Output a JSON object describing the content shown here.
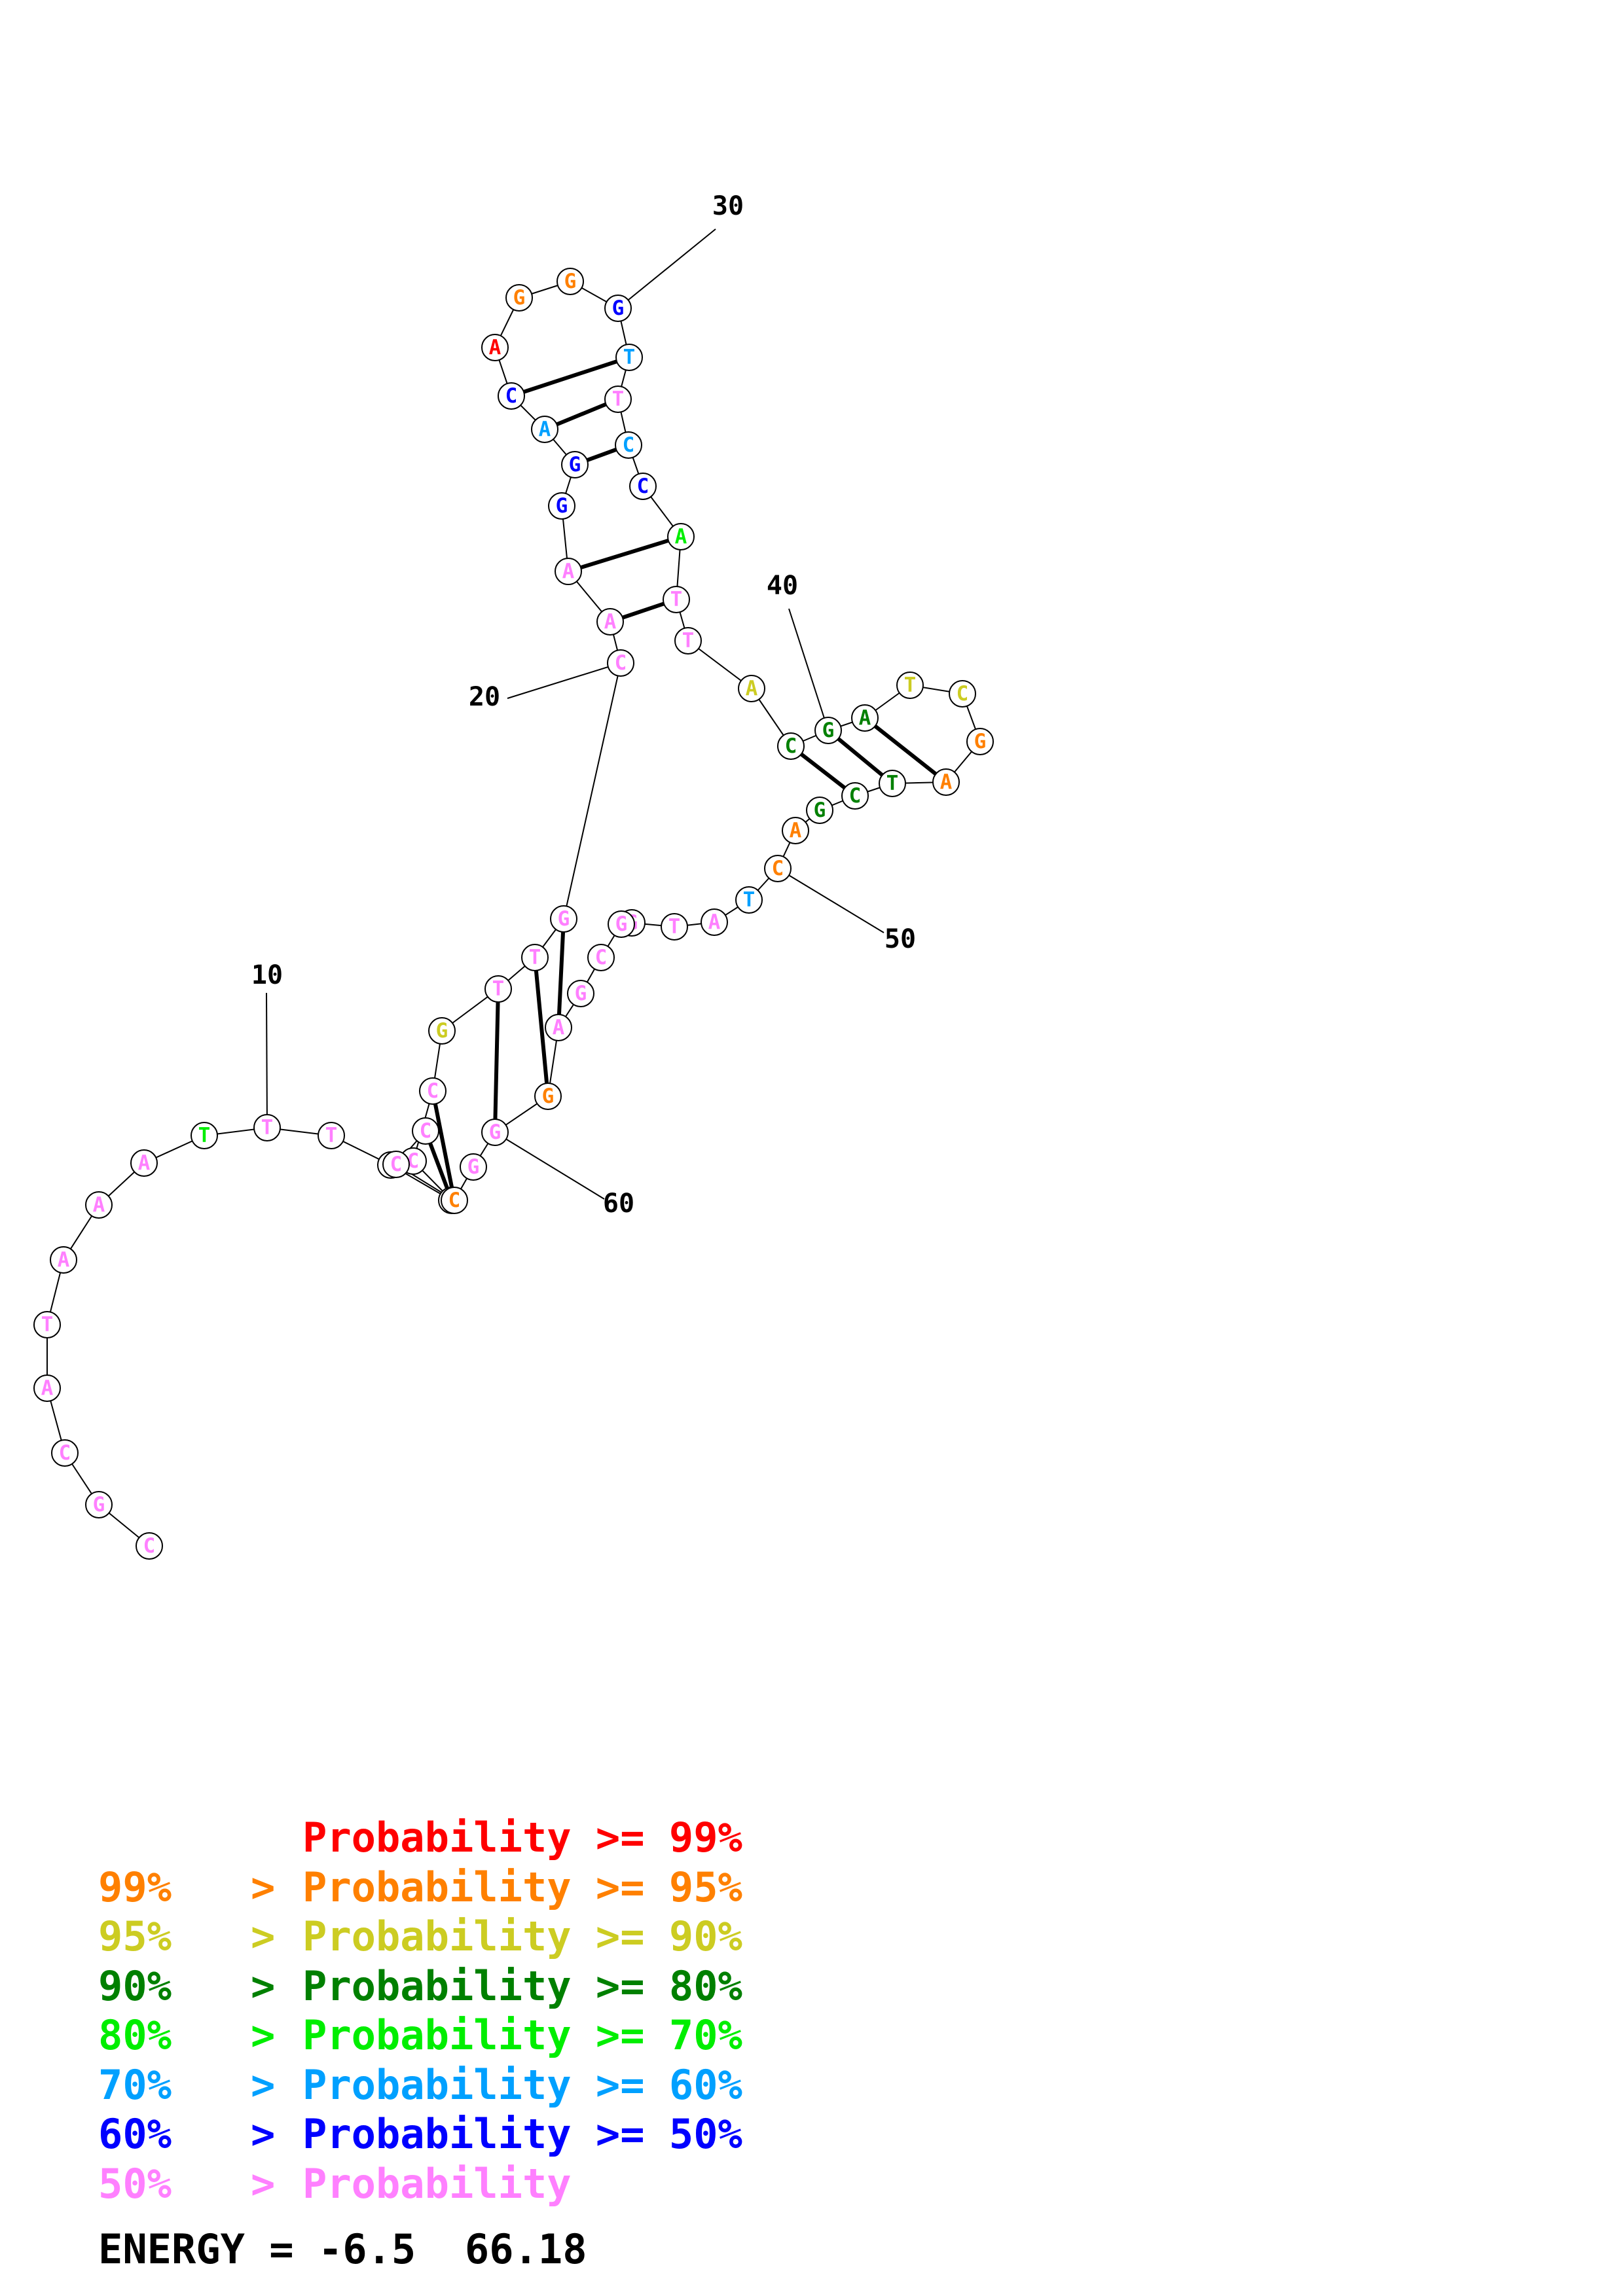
{
  "structure": {
    "sequence": [
      "C",
      "G",
      "C",
      "A",
      "T",
      "A",
      "A",
      "A",
      "T",
      "T",
      "T",
      "G",
      "C",
      "C",
      "C",
      "G",
      "T",
      "T",
      "G",
      "C",
      "A",
      "A",
      "G",
      "G",
      "A",
      "C",
      "A",
      "G",
      "G",
      "G",
      "T",
      "T",
      "C",
      "C",
      "A",
      "T",
      "T",
      "A",
      "C",
      "G",
      "A",
      "T",
      "C",
      "G",
      "A",
      "T",
      "C",
      "G",
      "A",
      "C",
      "T",
      "A",
      "T",
      "G",
      "G",
      "C",
      "G",
      "A",
      "G",
      "G",
      "G",
      "C",
      "C",
      "C"
    ],
    "probability_class": [
      8,
      8,
      8,
      8,
      8,
      8,
      8,
      8,
      5,
      8,
      8,
      8,
      8,
      8,
      8,
      3,
      8,
      8,
      8,
      8,
      8,
      8,
      7,
      7,
      6,
      7,
      1,
      2,
      2,
      7,
      6,
      8,
      6,
      7,
      5,
      8,
      8,
      3,
      4,
      4,
      4,
      3,
      3,
      2,
      2,
      4,
      4,
      4,
      2,
      2,
      6,
      8,
      8,
      8,
      8,
      8,
      8,
      8,
      2,
      8,
      8,
      2,
      8,
      8
    ],
    "base_pairs": [
      [
        13,
        64
      ],
      [
        14,
        63
      ],
      [
        15,
        62
      ],
      [
        17,
        60
      ],
      [
        18,
        59
      ],
      [
        19,
        58
      ],
      [
        21,
        36
      ],
      [
        22,
        35
      ],
      [
        24,
        33
      ],
      [
        25,
        32
      ],
      [
        26,
        31
      ],
      [
        39,
        47
      ],
      [
        40,
        46
      ],
      [
        41,
        45
      ]
    ],
    "position_markers": [
      "10",
      "20",
      "30",
      "40",
      "50",
      "60"
    ]
  },
  "colors": {
    "1": "#ff0000",
    "2": "#ff8000",
    "3": "#cccc22",
    "4": "#008000",
    "5": "#00ee00",
    "6": "#00a0ff",
    "7": "#0000ff",
    "8": "#ff80ff"
  },
  "legend": [
    {
      "class": 1,
      "lower": "",
      "op": "",
      "label": "Probability",
      "rel": ">=",
      "upper": "99%"
    },
    {
      "class": 2,
      "lower": "99%",
      "op": ">",
      "label": "Probability",
      "rel": ">=",
      "upper": "95%"
    },
    {
      "class": 3,
      "lower": "95%",
      "op": ">",
      "label": "Probability",
      "rel": ">=",
      "upper": "90%"
    },
    {
      "class": 4,
      "lower": "90%",
      "op": ">",
      "label": "Probability",
      "rel": ">=",
      "upper": "80%"
    },
    {
      "class": 5,
      "lower": "80%",
      "op": ">",
      "label": "Probability",
      "rel": ">=",
      "upper": "70%"
    },
    {
      "class": 6,
      "lower": "70%",
      "op": ">",
      "label": "Probability",
      "rel": ">=",
      "upper": "60%"
    },
    {
      "class": 7,
      "lower": "60%",
      "op": ">",
      "label": "Probability",
      "rel": ">=",
      "upper": "50%"
    },
    {
      "class": 8,
      "lower": "50%",
      "op": ">",
      "label": "Probability",
      "rel": "",
      "upper": ""
    }
  ],
  "energy": {
    "label": "ENERGY = -6.5",
    "value": "66.18"
  }
}
